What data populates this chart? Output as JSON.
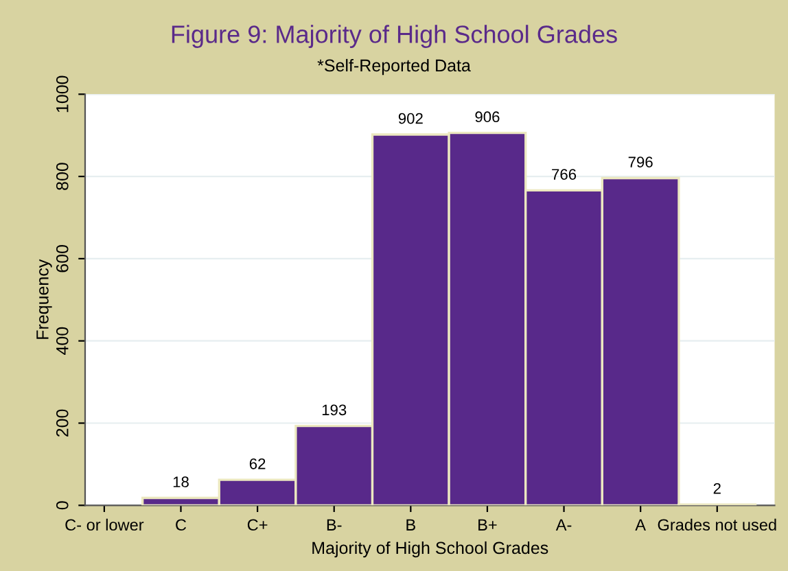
{
  "chart_data": {
    "type": "bar",
    "title": "Figure 9: Majority of High School Grades",
    "subtitle": "*Self-Reported Data",
    "xlabel": "Majority of High School Grades",
    "ylabel": "Frequency",
    "categories": [
      "C- or lower",
      "C",
      "C+",
      "B-",
      "B",
      "B+",
      "A-",
      "A",
      "Grades not used"
    ],
    "values": [
      null,
      18,
      62,
      193,
      902,
      906,
      766,
      796,
      2
    ],
    "value_labels": [
      null,
      "18",
      "62",
      "193",
      "902",
      "906",
      "766",
      "796",
      "2"
    ],
    "color": "#58298a",
    "ylim": [
      0,
      1000
    ],
    "yticks": [
      0,
      200,
      400,
      600,
      800,
      1000
    ],
    "grid": "y"
  }
}
